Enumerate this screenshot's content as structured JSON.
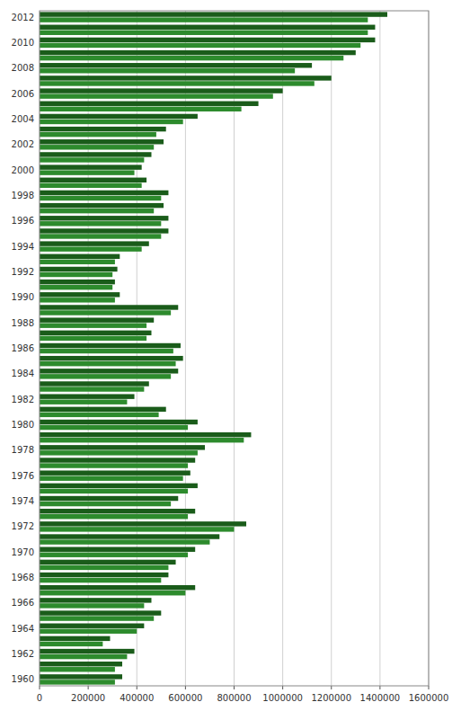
{
  "chart_data": {
    "type": "bar",
    "orientation": "horizontal",
    "grid": true,
    "categories": [
      "2012",
      null,
      "2010",
      null,
      "2008",
      null,
      "2006",
      null,
      "2004",
      null,
      "2002",
      null,
      "2000",
      null,
      "1998",
      null,
      "1996",
      null,
      "1994",
      null,
      "1992",
      null,
      "1990",
      null,
      "1988",
      null,
      "1986",
      null,
      "1984",
      null,
      "1982",
      null,
      "1980",
      null,
      "1978",
      null,
      "1976",
      null,
      "1974",
      null,
      "1972",
      null,
      "1970",
      null,
      "1968",
      null,
      "1966",
      null,
      "1964",
      null,
      "1962",
      null,
      "1960"
    ],
    "series": [
      {
        "color": "#1a5c1a",
        "values": [
          1430000,
          1380000,
          1380000,
          1300000,
          1120000,
          1200000,
          1000000,
          900000,
          650000,
          520000,
          510000,
          460000,
          420000,
          440000,
          530000,
          510000,
          530000,
          530000,
          450000,
          330000,
          320000,
          310000,
          330000,
          570000,
          470000,
          460000,
          580000,
          590000,
          570000,
          450000,
          390000,
          520000,
          650000,
          870000,
          680000,
          640000,
          620000,
          650000,
          570000,
          640000,
          850000,
          740000,
          640000,
          560000,
          530000,
          640000,
          460000,
          500000,
          430000,
          290000,
          390000,
          340000,
          340000
        ]
      },
      {
        "color": "#2d8b2d",
        "values": [
          1350000,
          1350000,
          1320000,
          1250000,
          1050000,
          1130000,
          960000,
          830000,
          590000,
          480000,
          470000,
          430000,
          390000,
          420000,
          500000,
          470000,
          500000,
          500000,
          420000,
          310000,
          300000,
          300000,
          310000,
          540000,
          440000,
          440000,
          550000,
          560000,
          540000,
          430000,
          360000,
          490000,
          610000,
          840000,
          650000,
          610000,
          590000,
          610000,
          540000,
          610000,
          800000,
          700000,
          610000,
          530000,
          500000,
          600000,
          430000,
          470000,
          400000,
          260000,
          360000,
          310000,
          310000
        ]
      }
    ],
    "xlim": [
      0,
      1600000
    ],
    "xticks": [
      0,
      200000,
      400000,
      600000,
      800000,
      1000000,
      1200000,
      1400000,
      1600000
    ]
  }
}
